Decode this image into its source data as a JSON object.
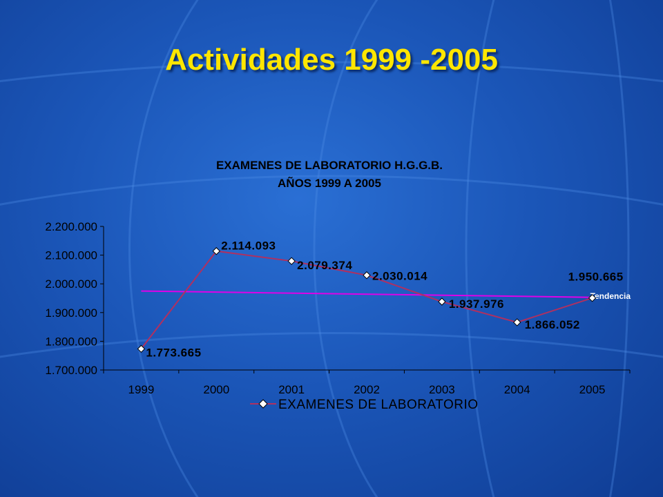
{
  "slide": {
    "title": "Actividades 1999 -2005"
  },
  "chart_data": {
    "type": "line",
    "title": "EXAMENES DE LABORATORIO  H.G.G.B.",
    "subtitle": "AÑOS 1999 A 2005",
    "categories": [
      "1999",
      "2000",
      "2001",
      "2002",
      "2003",
      "2004",
      "2005"
    ],
    "series": [
      {
        "name": "EXAMENES DE LABORATORIO",
        "values": [
          1773665,
          2114093,
          2079374,
          2030014,
          1937976,
          1866052,
          1950665
        ],
        "labels": [
          "1.773.665",
          "2.114.093",
          "2.079.374",
          "2.030.014",
          "1.937.976",
          "1.866.052",
          "1.950.665"
        ],
        "color": "#b03060"
      }
    ],
    "trendline": {
      "label": "Tendencia",
      "start": 1975000,
      "end": 1953000,
      "color": "#e000e8"
    },
    "ylim": [
      1700000,
      2200000
    ],
    "yticks": [
      2200000,
      2100000,
      2000000,
      1900000,
      1800000,
      1700000
    ],
    "ytick_labels": [
      "2.200.000",
      "2.100.000",
      "2.000.000",
      "1.900.000",
      "1.800.000",
      "1.700.000"
    ],
    "xlabel": "",
    "ylabel": "",
    "grid": false,
    "legend": "bottom"
  }
}
